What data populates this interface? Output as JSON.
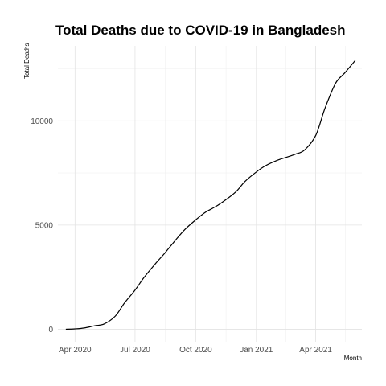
{
  "chart_data": {
    "type": "line",
    "title": "Total Deaths due to COVID-19 in Bangladesh",
    "xlabel": "Month",
    "ylabel": "Total Deaths",
    "x_tick_labels": [
      "Apr 2020",
      "Jul 2020",
      "Oct 2020",
      "Jan 2021",
      "Apr 2021"
    ],
    "x_tick_dates": [
      "2020-04-01",
      "2020-07-01",
      "2020-10-01",
      "2021-01-01",
      "2021-04-01"
    ],
    "y_ticks": [
      0,
      5000,
      10000
    ],
    "y_tick_labels": [
      "0",
      "5000",
      "10000"
    ],
    "xlim": [
      "2020-03-06",
      "2021-06-10"
    ],
    "ylim": [
      -600,
      13600
    ],
    "grid": true,
    "legend": "none",
    "line_color": "#000000",
    "series": [
      {
        "x": [
          "2020-03-18",
          "2020-04-01",
          "2020-04-15",
          "2020-05-01",
          "2020-05-15",
          "2020-06-01",
          "2020-06-15",
          "2020-07-01",
          "2020-07-15",
          "2020-08-01",
          "2020-08-15",
          "2020-09-01",
          "2020-09-15",
          "2020-10-01",
          "2020-10-15",
          "2020-11-01",
          "2020-11-15",
          "2020-12-01",
          "2020-12-15",
          "2021-01-01",
          "2021-01-15",
          "2021-02-01",
          "2021-02-15",
          "2021-03-01",
          "2021-03-15",
          "2021-04-01",
          "2021-04-15",
          "2021-05-01",
          "2021-05-15",
          "2021-05-31"
        ],
        "y": [
          1,
          17,
          60,
          170,
          250,
          630,
          1260,
          1880,
          2500,
          3150,
          3650,
          4300,
          4800,
          5250,
          5600,
          5900,
          6200,
          6600,
          7100,
          7550,
          7850,
          8100,
          8250,
          8400,
          8600,
          9300,
          10600,
          11800,
          12300,
          12900
        ]
      }
    ]
  }
}
